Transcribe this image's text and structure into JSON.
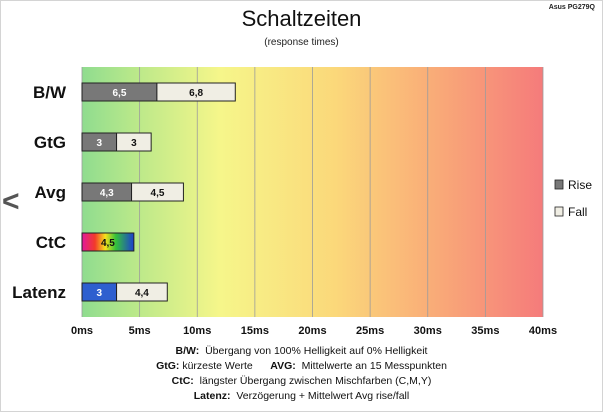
{
  "header": {
    "model": "Asus PG279Q",
    "nav_arrow": "<"
  },
  "chart_data": {
    "type": "bar",
    "orientation": "horizontal",
    "stacked": true,
    "title": "Schaltzeiten",
    "subtitle": "(response times)",
    "categories": [
      "B/W",
      "GtG",
      "Avg",
      "CtC",
      "Latenz"
    ],
    "series": [
      {
        "name": "Rise",
        "values": [
          6.5,
          3,
          4.3,
          null,
          3
        ],
        "color": "#787878"
      },
      {
        "name": "Fall",
        "values": [
          6.8,
          3,
          4.5,
          null,
          4.4
        ],
        "color": "#f0eee4"
      }
    ],
    "extra_bars": [
      {
        "category": "CtC",
        "value": 4.5,
        "label": "4,5",
        "fill": "rainbow"
      }
    ],
    "latenz_rise_color": "#2e5fcf",
    "value_labels": {
      "rise": [
        "6,5",
        "3",
        "4,3",
        "",
        "3"
      ],
      "fall": [
        "6,8",
        "3",
        "4,5",
        "",
        "4,4"
      ]
    },
    "xlim": [
      0,
      40
    ],
    "xticks": [
      0,
      5,
      10,
      15,
      20,
      25,
      30,
      35,
      40
    ],
    "xtick_labels": [
      "0ms",
      "5ms",
      "10ms",
      "15ms",
      "20ms",
      "25ms",
      "30ms",
      "35ms",
      "40ms"
    ],
    "grid": true,
    "background": "gradient green-yellow-orange-red",
    "legend": {
      "position": "right",
      "entries": [
        "Rise",
        "Fall"
      ]
    }
  },
  "notes": [
    {
      "label": "B/W:",
      "text": "Übergang von 100% Helligkeit auf 0% Helligkeit"
    },
    {
      "label": "GtG:",
      "text": "kürzeste Werte",
      "label2": "AVG:",
      "text2": "Mittelwerte an 15 Messpunkten"
    },
    {
      "label": "CtC:",
      "text": "längster Übergang zwischen Mischfarben (C,M,Y)"
    },
    {
      "label": "Latenz:",
      "text": "Verzögerung + Mittelwert Avg rise/fall"
    }
  ]
}
